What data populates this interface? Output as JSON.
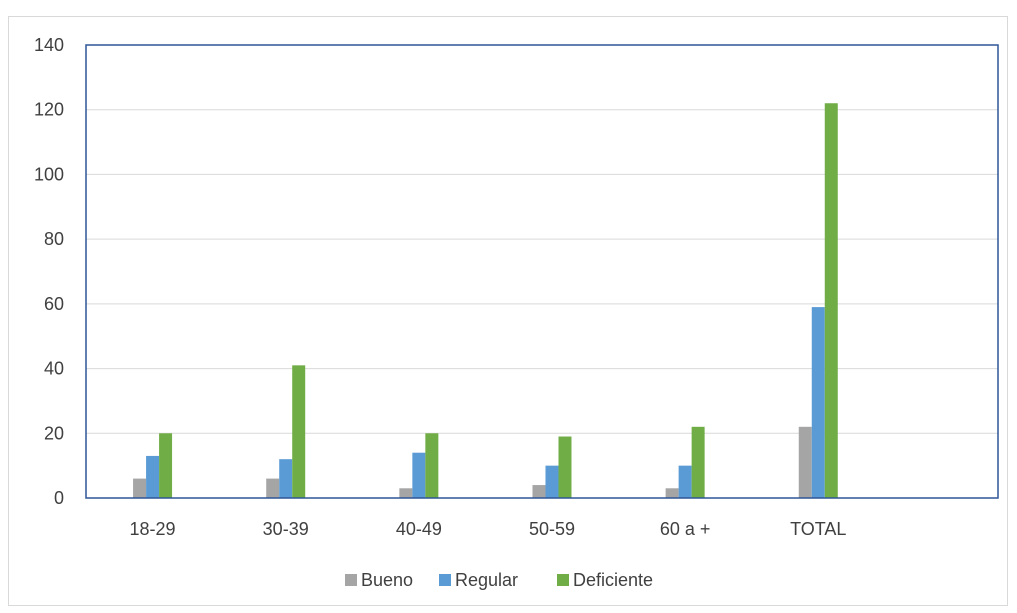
{
  "chart_data": {
    "type": "bar",
    "categories": [
      "18-29",
      "30-39",
      "40-49",
      "50-59",
      "60 a +",
      "TOTAL"
    ],
    "series": [
      {
        "name": "Bueno",
        "values": [
          6,
          6,
          3,
          4,
          3,
          22
        ],
        "color": "#a5a5a5"
      },
      {
        "name": "Regular",
        "values": [
          13,
          12,
          14,
          10,
          10,
          59
        ],
        "color": "#5b9bd5"
      },
      {
        "name": "Deficiente",
        "values": [
          20,
          41,
          20,
          19,
          22,
          122
        ],
        "color": "#70ad47"
      }
    ],
    "ylim": [
      0,
      140
    ],
    "yticks": [
      "0",
      "20",
      "40",
      "60",
      "80",
      "100",
      "120",
      "140"
    ],
    "title": "",
    "xlabel": "",
    "ylabel": "",
    "grid": true,
    "legend": "bottom",
    "plot_border_color": "#2f5597"
  }
}
